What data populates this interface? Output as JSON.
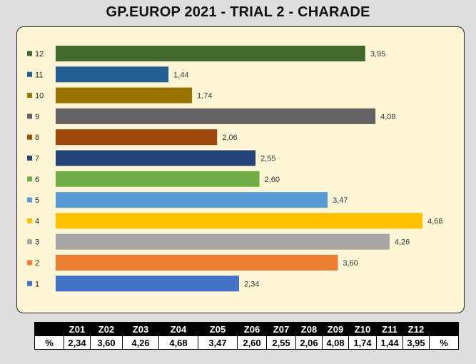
{
  "title": "GP.EUROP 2021 - TRIAL 2  - CHARADE",
  "chart_data": {
    "type": "bar",
    "orientation": "horizontal",
    "categories": [
      "1",
      "2",
      "3",
      "4",
      "5",
      "6",
      "7",
      "8",
      "9",
      "10",
      "11",
      "12"
    ],
    "values": [
      2.34,
      3.6,
      4.26,
      4.68,
      3.47,
      2.6,
      2.55,
      2.06,
      4.08,
      1.74,
      1.44,
      3.95
    ],
    "value_labels": [
      "2,34",
      "3,60",
      "4,26",
      "4,68",
      "3,47",
      "2,60",
      "2,55",
      "2,06",
      "4,08",
      "1,74",
      "1,44",
      "3,95"
    ],
    "colors": [
      "#4472c4",
      "#ed7d31",
      "#a5a5a5",
      "#ffc000",
      "#5b9bd5",
      "#70ad47",
      "#264478",
      "#9e480e",
      "#636363",
      "#997300",
      "#255e91",
      "#43682b"
    ],
    "xlim": [
      0,
      4.68
    ],
    "grid": false,
    "legend": "left"
  },
  "table": {
    "headers": [
      "",
      "Z01",
      "Z02",
      "Z03",
      "Z04",
      "Z05",
      "Z06",
      "Z07",
      "Z08",
      "Z09",
      "Z10",
      "Z11",
      "Z12",
      ""
    ],
    "row": [
      "%",
      "2,34",
      "3,60",
      "4,26",
      "4,68",
      "3,47",
      "2,60",
      "2,55",
      "2,06",
      "4,08",
      "1,74",
      "1,44",
      "3,95",
      "%"
    ]
  }
}
